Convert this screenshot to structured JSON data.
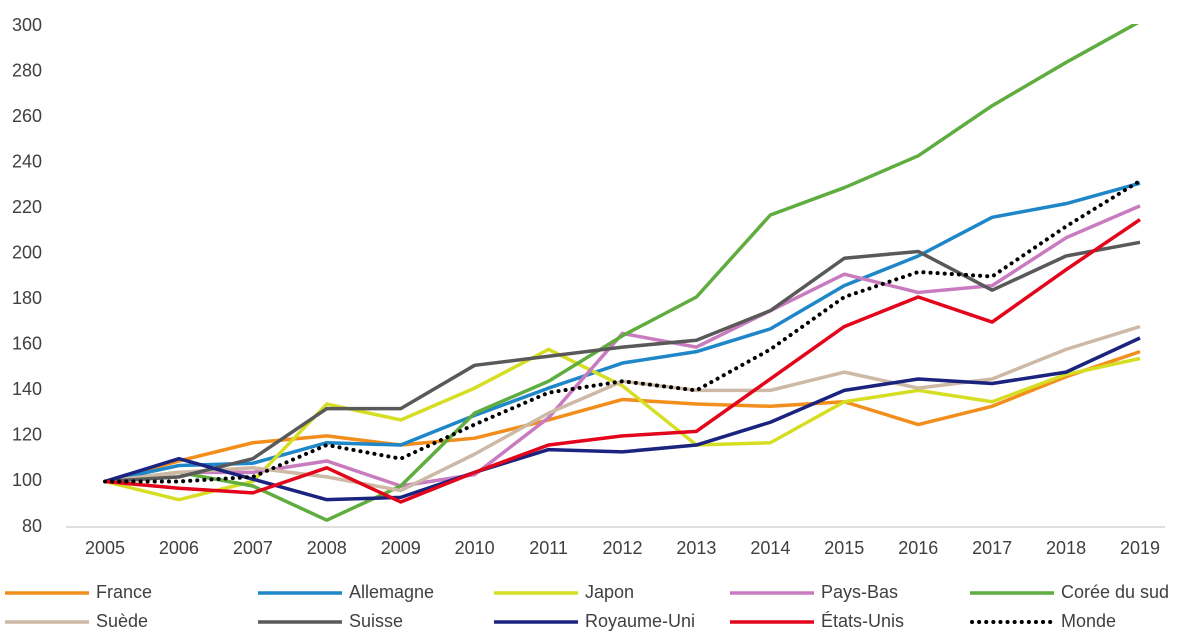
{
  "chart_data": {
    "type": "line",
    "categories": [
      "2005",
      "2006",
      "2007",
      "2008",
      "2009",
      "2010",
      "2011",
      "2012",
      "2013",
      "2014",
      "2015",
      "2016",
      "2017",
      "2018",
      "2019"
    ],
    "ylim": [
      80,
      300
    ],
    "yticks": [
      80,
      100,
      120,
      140,
      160,
      180,
      200,
      220,
      240,
      260,
      280,
      300
    ],
    "legend": "bottom",
    "series": [
      {
        "name": "France",
        "color": "#f28e1c",
        "values": [
          100,
          109,
          117,
          120,
          116,
          119,
          127,
          136,
          134,
          133,
          135,
          125,
          133,
          146,
          157
        ]
      },
      {
        "name": "Allemagne",
        "color": "#1f87c8",
        "values": [
          100,
          107,
          108,
          117,
          116,
          129,
          141,
          152,
          157,
          167,
          186,
          199,
          216,
          222,
          231
        ]
      },
      {
        "name": "Japon",
        "color": "#d6de23",
        "values": [
          100,
          92,
          100,
          134,
          127,
          141,
          158,
          142,
          116,
          117,
          135,
          140,
          135,
          147,
          154
        ]
      },
      {
        "name": "Pays-Bas",
        "color": "#c97bbf",
        "values": [
          100,
          104,
          104,
          109,
          98,
          103,
          128,
          165,
          159,
          175,
          191,
          183,
          186,
          207,
          221
        ]
      },
      {
        "name": "Corée du sud",
        "color": "#5fad3f",
        "values": [
          100,
          104,
          98,
          83,
          98,
          130,
          144,
          164,
          181,
          217,
          229,
          243,
          265,
          284,
          302
        ]
      },
      {
        "name": "Suède",
        "color": "#cdb9a5",
        "values": [
          100,
          104,
          106,
          102,
          96,
          112,
          130,
          144,
          140,
          140,
          148,
          141,
          145,
          158,
          168
        ]
      },
      {
        "name": "Suisse",
        "color": "#595959",
        "values": [
          100,
          102,
          110,
          132,
          132,
          151,
          155,
          159,
          162,
          175,
          198,
          201,
          184,
          199,
          205
        ]
      },
      {
        "name": "Royaume-Uni",
        "color": "#1a237e",
        "values": [
          100,
          110,
          101,
          92,
          93,
          104,
          114,
          113,
          116,
          126,
          140,
          145,
          143,
          148,
          163
        ]
      },
      {
        "name": "États-Unis",
        "color": "#e3051b",
        "values": [
          100,
          97,
          95,
          106,
          91,
          104,
          116,
          120,
          122,
          145,
          168,
          181,
          170,
          193,
          215
        ]
      },
      {
        "name": "Monde",
        "color": "#000000",
        "dashed": true,
        "values": [
          100,
          100,
          102,
          116,
          110,
          125,
          139,
          144,
          140,
          158,
          181,
          192,
          190,
          212,
          232
        ]
      }
    ]
  }
}
